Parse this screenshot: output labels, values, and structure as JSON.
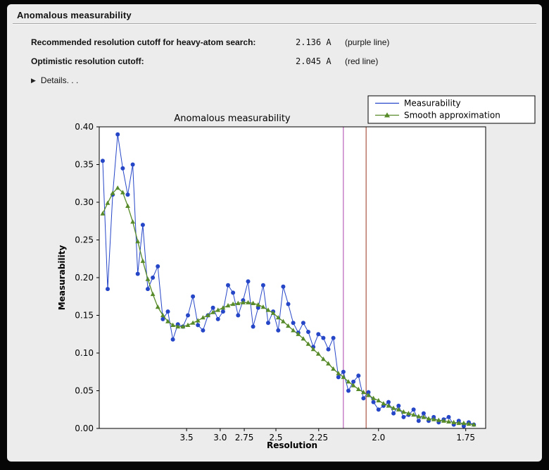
{
  "window": {
    "title": "Anomalous measurability"
  },
  "info": {
    "rows": [
      {
        "label": "Recommended resolution cutoff for heavy-atom search:",
        "value": "2.136 A",
        "note": "(purple line)"
      },
      {
        "label": "Optimistic resolution cutoff:",
        "value": "2.045 A",
        "note": "(red line)"
      }
    ],
    "details_label": "Details. . .",
    "details_icon": "right-pointing-triangle"
  },
  "chart_data": {
    "type": "line",
    "title": "Anomalous measurability",
    "xlabel": "Resolution",
    "ylabel": "Measurability",
    "x_axis_note": "x axis spaced as 1/d^2, resolution d in Angstrom, decreasing d to the right",
    "grid": false,
    "legend_position": "top-right",
    "xlim_inv_d_squared": [
      0.005,
      0.344
    ],
    "ylim": [
      0.0,
      0.4
    ],
    "x_ticks_resolution": [
      3.5,
      3.0,
      2.75,
      2.5,
      2.25,
      2.0,
      1.75
    ],
    "x_tick_labels": [
      "3.5",
      "3.0",
      "2.75",
      "2.5",
      "2.25",
      "2.0",
      "1.75"
    ],
    "y_ticks": [
      0.0,
      0.05,
      0.1,
      0.15,
      0.2,
      0.25,
      0.3,
      0.35,
      0.4
    ],
    "y_tick_labels": [
      "0.00",
      "0.05",
      "0.10",
      "0.15",
      "0.20",
      "0.25",
      "0.30",
      "0.35",
      "0.40"
    ],
    "x_inv_d_squared": [
      0.008,
      0.0124,
      0.0168,
      0.0212,
      0.0256,
      0.03,
      0.0344,
      0.0388,
      0.0432,
      0.0476,
      0.052,
      0.0564,
      0.0608,
      0.0652,
      0.0696,
      0.074,
      0.0784,
      0.0828,
      0.0872,
      0.0916,
      0.096,
      0.1004,
      0.1048,
      0.1092,
      0.1136,
      0.118,
      0.1224,
      0.1268,
      0.1312,
      0.1356,
      0.14,
      0.1444,
      0.1488,
      0.1532,
      0.1576,
      0.162,
      0.1664,
      0.1708,
      0.1752,
      0.1796,
      0.184,
      0.1884,
      0.1928,
      0.1972,
      0.2016,
      0.206,
      0.2104,
      0.2148,
      0.2192,
      0.2236,
      0.228,
      0.2324,
      0.2368,
      0.2412,
      0.2456,
      0.25,
      0.2544,
      0.2588,
      0.2632,
      0.2676,
      0.272,
      0.2764,
      0.2808,
      0.2852,
      0.2896,
      0.294,
      0.2984,
      0.3028,
      0.3072,
      0.3116,
      0.316,
      0.3204,
      0.3248,
      0.3292,
      0.3336
    ],
    "series": [
      {
        "name": "Measurability",
        "color": "#2646c8",
        "marker": "circle",
        "values": [
          0.355,
          0.185,
          0.31,
          0.39,
          0.345,
          0.31,
          0.35,
          0.205,
          0.27,
          0.185,
          0.2,
          0.215,
          0.145,
          0.155,
          0.118,
          0.138,
          0.135,
          0.15,
          0.175,
          0.137,
          0.13,
          0.15,
          0.16,
          0.145,
          0.155,
          0.19,
          0.18,
          0.15,
          0.17,
          0.195,
          0.135,
          0.16,
          0.19,
          0.14,
          0.155,
          0.13,
          0.188,
          0.165,
          0.14,
          0.127,
          0.14,
          0.128,
          0.108,
          0.125,
          0.12,
          0.105,
          0.12,
          0.068,
          0.075,
          0.05,
          0.062,
          0.07,
          0.04,
          0.048,
          0.035,
          0.025,
          0.03,
          0.035,
          0.02,
          0.03,
          0.015,
          0.018,
          0.025,
          0.01,
          0.02,
          0.01,
          0.015,
          0.008,
          0.012,
          0.015,
          0.005,
          0.01,
          0.003,
          0.008,
          0.005
        ]
      },
      {
        "name": "Smooth approximation",
        "color": "#578a28",
        "marker": "triangle",
        "values": [
          0.285,
          0.299,
          0.312,
          0.319,
          0.313,
          0.295,
          0.274,
          0.248,
          0.222,
          0.198,
          0.178,
          0.161,
          0.15,
          0.142,
          0.137,
          0.135,
          0.135,
          0.137,
          0.14,
          0.143,
          0.147,
          0.15,
          0.154,
          0.157,
          0.16,
          0.163,
          0.165,
          0.166,
          0.167,
          0.167,
          0.166,
          0.164,
          0.161,
          0.157,
          0.153,
          0.147,
          0.142,
          0.136,
          0.13,
          0.125,
          0.119,
          0.112,
          0.105,
          0.099,
          0.092,
          0.086,
          0.079,
          0.073,
          0.068,
          0.062,
          0.057,
          0.052,
          0.048,
          0.044,
          0.04,
          0.037,
          0.033,
          0.03,
          0.027,
          0.025,
          0.022,
          0.02,
          0.018,
          0.016,
          0.015,
          0.013,
          0.012,
          0.011,
          0.01,
          0.009,
          0.008,
          0.007,
          0.007,
          0.006,
          0.005
        ]
      }
    ],
    "vlines": [
      {
        "resolution": 2.136,
        "color": "#aa44aa",
        "label": "purple line"
      },
      {
        "resolution": 2.045,
        "color": "#993322",
        "label": "red line"
      }
    ]
  }
}
